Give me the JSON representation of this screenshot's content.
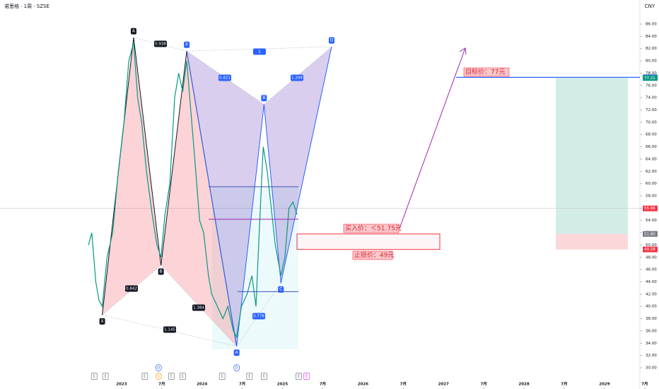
{
  "header": {
    "symbol": "诺思格 · 1周 · SZSE",
    "currency": "CNY"
  },
  "chart_data": {
    "type": "line",
    "xlim": [
      2021.49,
      2029.44
    ],
    "ylim": [
      26.54,
      89.92
    ],
    "yticks": [
      {
        "value": 30,
        "label": "30.00"
      },
      {
        "value": 32,
        "label": "32.00"
      },
      {
        "value": 34,
        "label": "34.00"
      },
      {
        "value": 36,
        "label": "36.00"
      },
      {
        "value": 38,
        "label": "38.00"
      },
      {
        "value": 40,
        "label": "40.00"
      },
      {
        "value": 42,
        "label": "42.00"
      },
      {
        "value": 44,
        "label": "44.00"
      },
      {
        "value": 46,
        "label": "46.00"
      },
      {
        "value": 48,
        "label": "48.00"
      },
      {
        "value": 50,
        "label": "50.00"
      },
      {
        "value": 52,
        "label": "52.00"
      },
      {
        "value": 54,
        "label": "54.00"
      },
      {
        "value": 56,
        "label": "56.00"
      },
      {
        "value": 58,
        "label": "58.00"
      },
      {
        "value": 60,
        "label": "60.00"
      },
      {
        "value": 62,
        "label": "62.00"
      },
      {
        "value": 64,
        "label": "64.00"
      },
      {
        "value": 66,
        "label": "66.00"
      },
      {
        "value": 68,
        "label": "68.00"
      },
      {
        "value": 70,
        "label": "70.00"
      },
      {
        "value": 72,
        "label": "72.00"
      },
      {
        "value": 74,
        "label": "74.00"
      },
      {
        "value": 76,
        "label": "76.00"
      },
      {
        "value": 78,
        "label": "78.00"
      },
      {
        "value": 80,
        "label": "80.00"
      },
      {
        "value": 82,
        "label": "82.00"
      },
      {
        "value": 84,
        "label": "84.00"
      },
      {
        "value": 86,
        "label": "86.00"
      }
    ],
    "xticks": [
      2023,
      {
        "value": 2023.5,
        "label": "7月"
      },
      2024,
      {
        "value": 2024.5,
        "label": "7月"
      },
      2025,
      {
        "value": 2025.5,
        "label": "7月"
      },
      2026,
      {
        "value": 2026.5,
        "label": "7月"
      },
      2027,
      {
        "value": 2027.5,
        "label": "7月"
      },
      2028,
      {
        "value": 2028.5,
        "label": "7月"
      },
      2029,
      {
        "value": 2029.5,
        "label": "7月"
      }
    ],
    "series": [
      {
        "color": "#089981",
        "x": [
          2022.59,
          2022.63,
          2022.68,
          2022.72,
          2022.76,
          2022.82,
          2022.89,
          2022.96,
          2023.03,
          2023.09,
          2023.15,
          2023.2,
          2023.25,
          2023.31,
          2023.38,
          2023.44,
          2023.49,
          2023.54,
          2023.6,
          2023.66,
          2023.71,
          2023.76,
          2023.81,
          2023.86,
          2023.91,
          2023.97,
          2024.02,
          2024.08,
          2024.12,
          2024.19,
          2024.26,
          2024.32,
          2024.39,
          2024.43,
          2024.49,
          2024.56,
          2024.62,
          2024.67,
          2024.71,
          2024.76,
          2024.81,
          2024.86,
          2024.91,
          2024.98,
          2025.03,
          2025.08,
          2025.13,
          2025.18
        ],
        "values": [
          50,
          52,
          44,
          41,
          40,
          48,
          52,
          62,
          70,
          80,
          83,
          74,
          70,
          62,
          55,
          50,
          48,
          55,
          60,
          74,
          78,
          75,
          80,
          72,
          64,
          54,
          52,
          45,
          42,
          40,
          38,
          40,
          36,
          35,
          40,
          42,
          45,
          40,
          52,
          66,
          62,
          56,
          50,
          45,
          48,
          56,
          57,
          55
        ]
      }
    ],
    "patterns": [
      {
        "color": "#f23645",
        "points": [
          {
            "label": "X",
            "x": 2022.76,
            "y": 38.6
          },
          {
            "label": "A",
            "x": 2023.15,
            "y": 83.8
          },
          {
            "label": "B",
            "x": 2023.49,
            "y": 46.7
          },
          {
            "label": null,
            "x": 2023.81,
            "y": 81.6
          },
          {
            "label": null,
            "x": 2024.43,
            "y": 33.5
          }
        ]
      },
      {
        "color": "#2962ff",
        "points": [
          {
            "label": "X",
            "x": 2023.81,
            "y": 81.6
          },
          {
            "label": "A",
            "x": 2024.43,
            "y": 33.5
          },
          {
            "label": "B",
            "x": 2024.77,
            "y": 72.9
          },
          {
            "label": "C",
            "x": 2024.98,
            "y": 43.8
          },
          {
            "label": "D",
            "x": 2025.61,
            "y": 82.3
          }
        ]
      }
    ],
    "ratios": [
      "0.938",
      "0.842",
      "1.145",
      "1.384",
      "0.821",
      "1.299",
      "0.778",
      "1"
    ],
    "levels": {
      "target": 77.32,
      "take_profit_zone": 77.21,
      "entry": 51.8,
      "stop": 49.28,
      "last": 55.96
    },
    "price_tags": [
      {
        "value": 77.32,
        "label": "77.32",
        "color": "#2962ff"
      },
      {
        "value": 77.21,
        "label": "77.21",
        "color": "#089981"
      },
      {
        "value": 55.96,
        "label": "55.96",
        "color": "#f23645"
      },
      {
        "value": 51.8,
        "label": "51.80",
        "color": "#787b86"
      },
      {
        "value": 49.28,
        "label": "49.28",
        "color": "#f23645"
      }
    ],
    "annotations": {
      "target": "目标价：77元",
      "entry": "买入价：＜51.75元",
      "stop": "止损价：49元"
    },
    "events": [
      {
        "label": "E",
        "x": 2022.66
      },
      {
        "label": "E",
        "x": 2022.8
      },
      {
        "label": "E",
        "x": 2023.29
      },
      {
        "label": "D",
        "x": 2023.46
      },
      {
        "label": "S",
        "x": 2023.46
      },
      {
        "label": "E",
        "x": 2023.62
      },
      {
        "label": "E",
        "x": 2023.76
      },
      {
        "label": "E",
        "x": 2024.25
      },
      {
        "label": "D",
        "x": 2024.43
      },
      {
        "label": "E",
        "x": 2024.59
      },
      {
        "label": "E",
        "x": 2024.77
      },
      {
        "label": "E",
        "x": 2025.2
      },
      {
        "label": "E",
        "x": 2025.3
      }
    ]
  }
}
